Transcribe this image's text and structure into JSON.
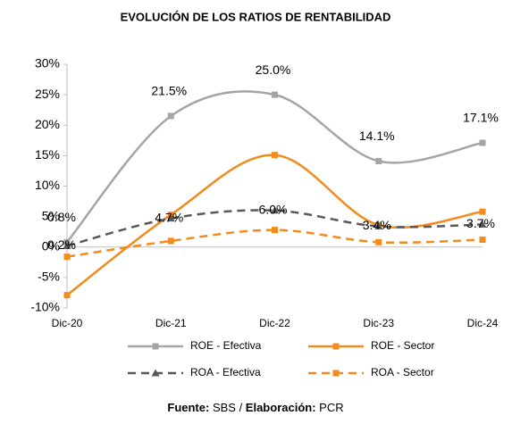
{
  "chart_data": {
    "type": "line",
    "title": "EVOLUCIÓN DE LOS RATIOS DE RENTABILIDAD",
    "categories": [
      "Dic-20",
      "Dic-21",
      "Dic-22",
      "Dic-23",
      "Dic-24"
    ],
    "series": [
      {
        "name": "ROE - Efectiva",
        "color": "#a5a5a5",
        "line_style": "solid",
        "marker": "square",
        "values": [
          0.8,
          21.5,
          25.0,
          14.1,
          17.1
        ],
        "value_labels": [
          "0.8%",
          "21.5%",
          "25.0%",
          "14.1%",
          "17.1%"
        ]
      },
      {
        "name": "ROE - Sector",
        "color": "#f28a1c",
        "line_style": "solid",
        "marker": "square",
        "values": [
          -7.9,
          5.3,
          15.1,
          3.6,
          5.8
        ]
      },
      {
        "name": "ROA - Efectiva",
        "color": "#595959",
        "line_style": "dashed",
        "marker": "triangle",
        "values": [
          0.2,
          4.7,
          6.0,
          3.4,
          3.7
        ],
        "value_labels": [
          "0.2%",
          "4.7%",
          "6.0%",
          "3.4%",
          "3.7%"
        ]
      },
      {
        "name": "ROA - Sector",
        "color": "#f28a1c",
        "line_style": "dashed",
        "marker": "square",
        "values": [
          -1.6,
          1.0,
          2.8,
          0.8,
          1.2
        ]
      }
    ],
    "ylim": [
      -10,
      30
    ],
    "yticks": [
      {
        "value": -10,
        "label": "-10%"
      },
      {
        "value": -5,
        "label": "-5%"
      },
      {
        "value": 0,
        "label": "0%"
      },
      {
        "value": 5,
        "label": "5%"
      },
      {
        "value": 10,
        "label": "10%"
      },
      {
        "value": 15,
        "label": "15%"
      },
      {
        "value": 20,
        "label": "20%"
      },
      {
        "value": 25,
        "label": "25%"
      },
      {
        "value": 30,
        "label": "30%"
      }
    ],
    "smooth": true,
    "legend": "bottom",
    "footnote": [
      {
        "text": "Fuente:",
        "bold": true
      },
      {
        "text": " SBS / ",
        "bold": false
      },
      {
        "text": "Elaboración:",
        "bold": true
      },
      {
        "text": " PCR",
        "bold": false
      }
    ]
  }
}
